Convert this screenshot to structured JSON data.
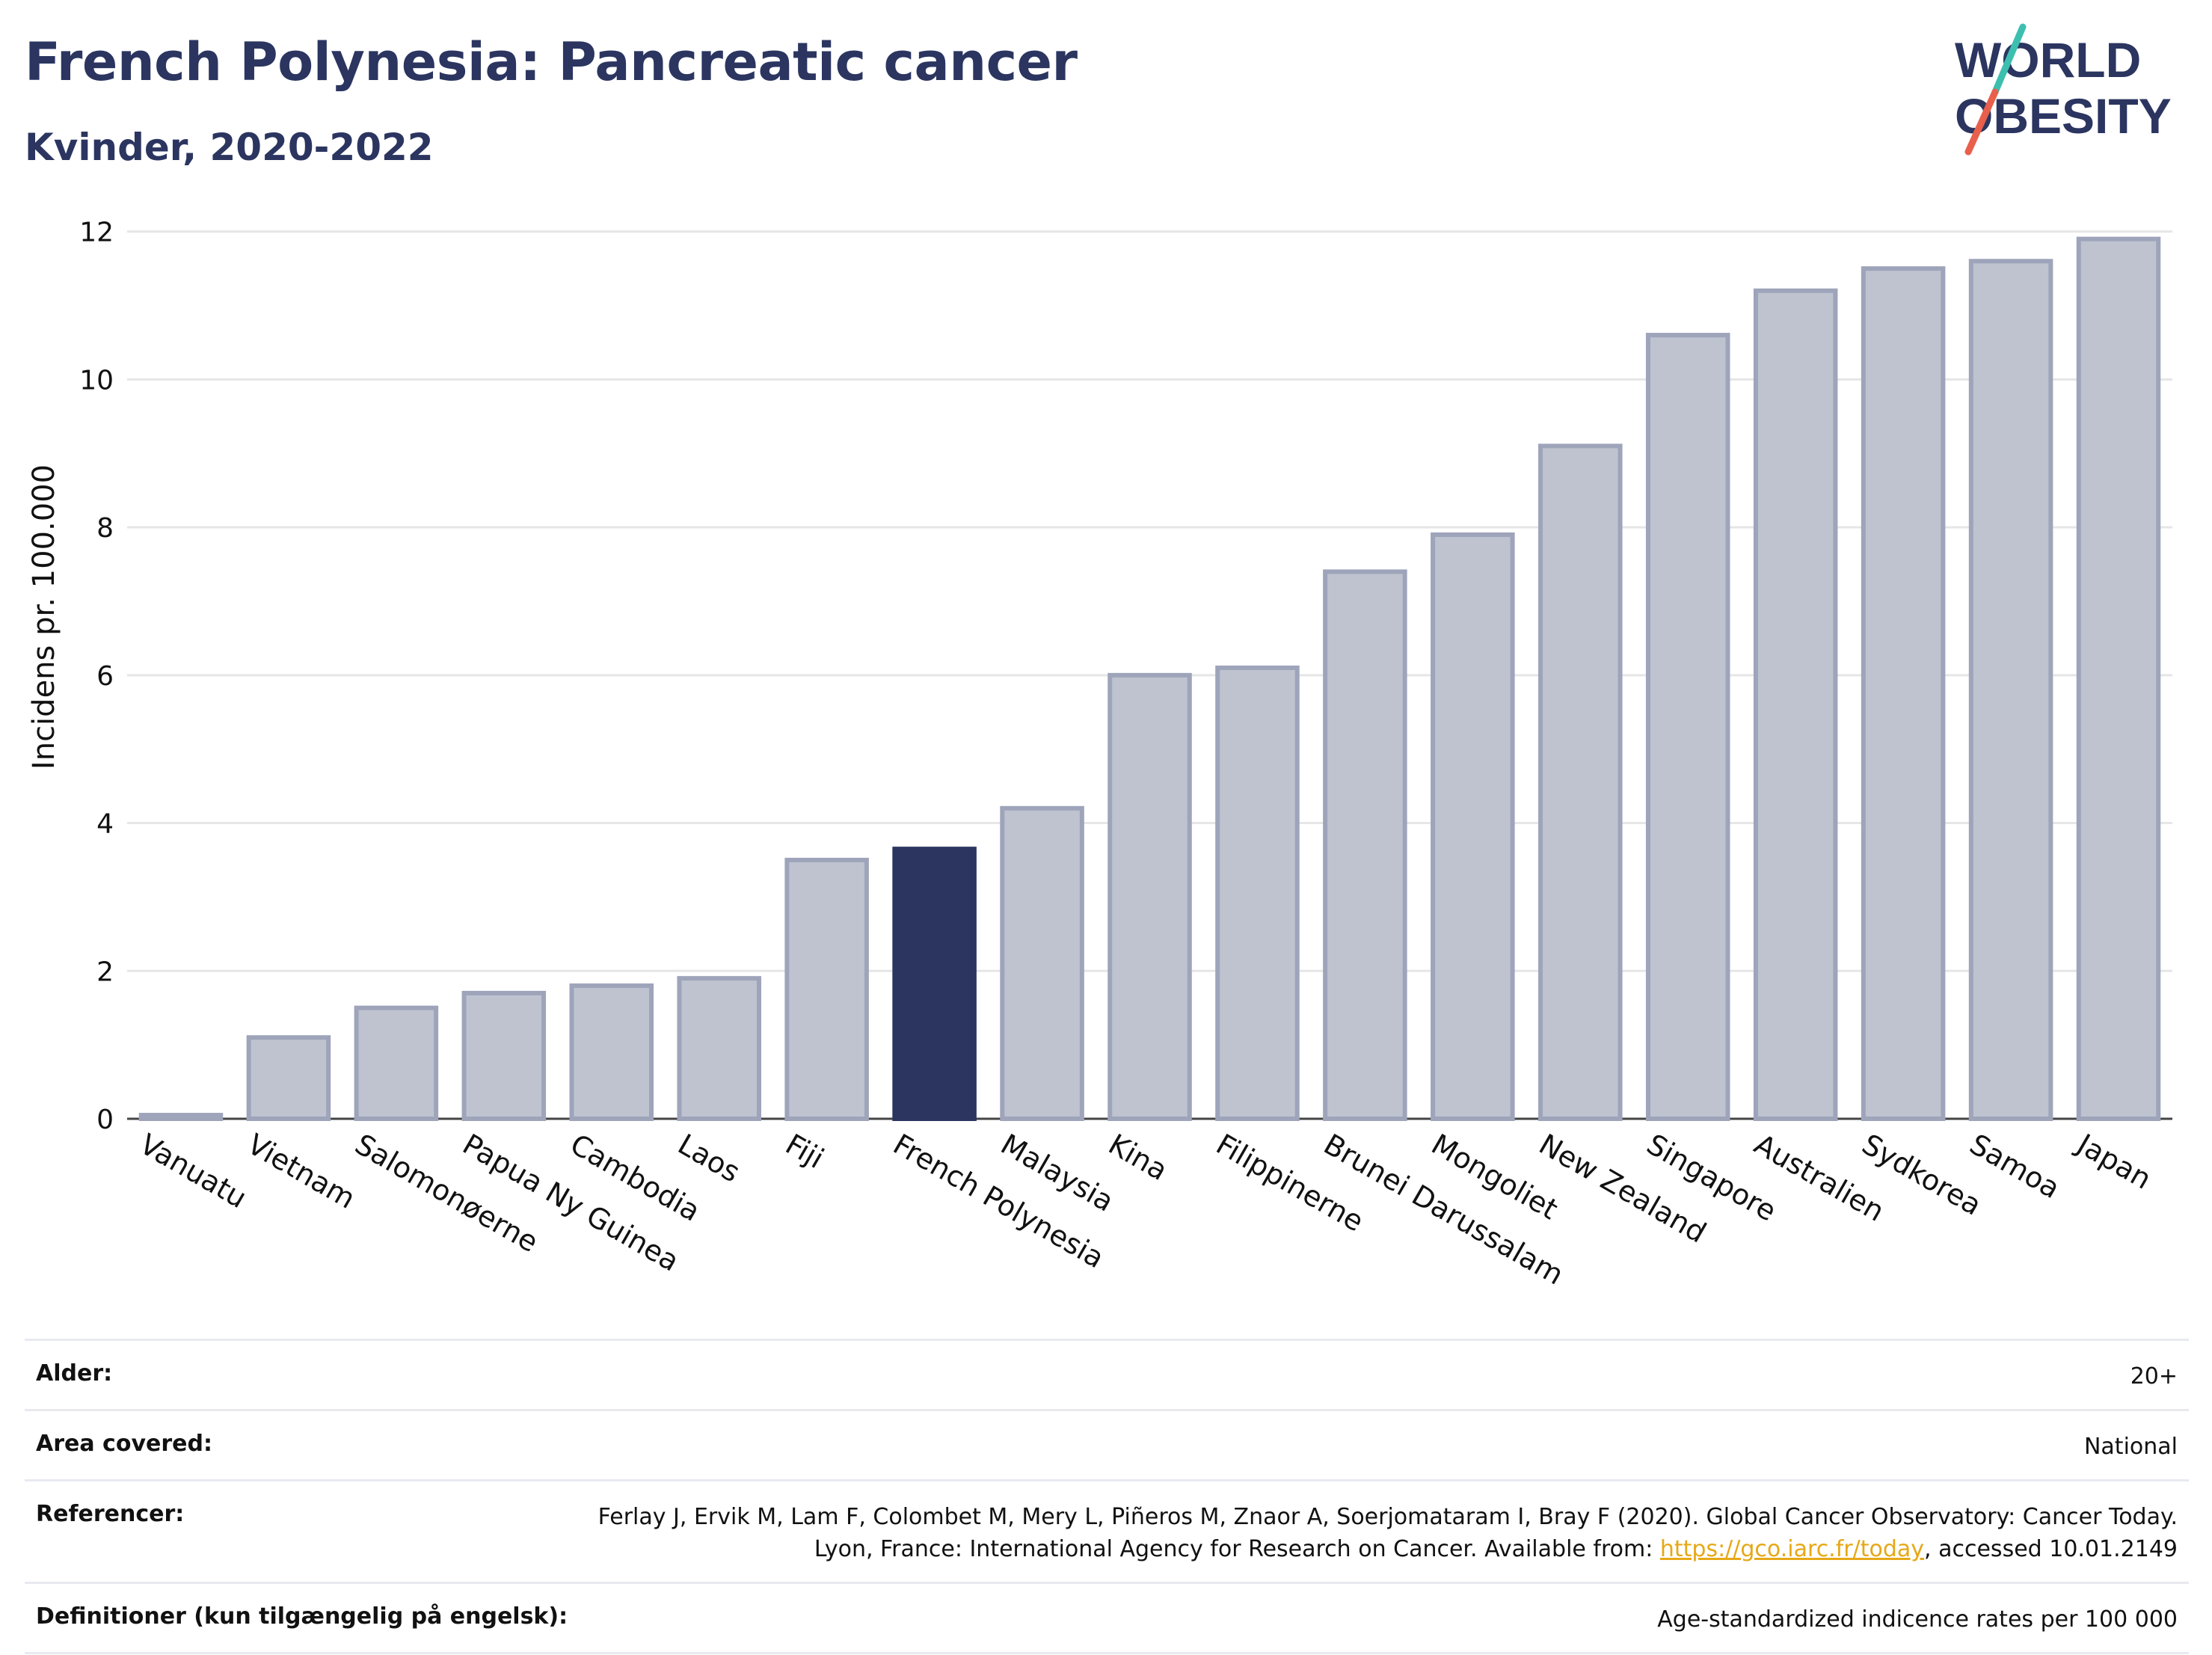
{
  "header": {
    "title": "French Polynesia: Pancreatic cancer",
    "subtitle": "Kvinder, 2020-2022"
  },
  "logo": {
    "line1": "WORLD",
    "line2": "OBESITY",
    "accent_teal": "#3dbfb0",
    "accent_red": "#e8604c",
    "text_color": "#2b3560"
  },
  "colors": {
    "bar": "#bfc3d0",
    "bar_border": "#9ea4ba",
    "highlight": "#2b3560",
    "grid": "#e6e6e6"
  },
  "chart_data": {
    "type": "bar",
    "title": "French Polynesia: Pancreatic cancer",
    "subtitle": "Kvinder, 2020-2022",
    "xlabel": "",
    "ylabel": "Incidens pr. 100.000",
    "ylim": [
      0,
      12.3
    ],
    "yticks": [
      0,
      2,
      4,
      6,
      8,
      10,
      12
    ],
    "grid": true,
    "highlight": "French Polynesia",
    "categories": [
      "Vanuatu",
      "Vietnam",
      "Salomonøerne",
      "Papua Ny Guinea",
      "Cambodia",
      "Laos",
      "Fiji",
      "French Polynesia",
      "Malaysia",
      "Kina",
      "Filippinerne",
      "Brunei Darussalam",
      "Mongoliet",
      "New Zealand",
      "Singapore",
      "Australien",
      "Sydkorea",
      "Samoa",
      "Japan"
    ],
    "values": [
      0.05,
      1.1,
      1.5,
      1.7,
      1.8,
      1.9,
      3.5,
      3.65,
      4.2,
      6.0,
      6.1,
      7.4,
      7.9,
      9.1,
      10.6,
      11.2,
      11.5,
      11.6,
      11.9
    ]
  },
  "meta": {
    "age_label": "Alder:",
    "age_value": "20+",
    "area_label": "Area covered:",
    "area_value": "National",
    "ref_label": "Referencer:",
    "ref_text_1": "Ferlay J, Ervik M, Lam F, Colombet M, Mery L, Piñeros M, Znaor A, Soerjomataram I, Bray F (2020). Global Cancer Observatory: Cancer Today. Lyon, France: International Agency for Research on Cancer. Available from: ",
    "ref_link": "https://gco.iarc.fr/today",
    "ref_text_2": ", accessed 10.01.2149",
    "def_label": "Definitioner (kun tilgængelig på engelsk):",
    "def_value": "Age-standardized indicence rates per 100 000"
  }
}
